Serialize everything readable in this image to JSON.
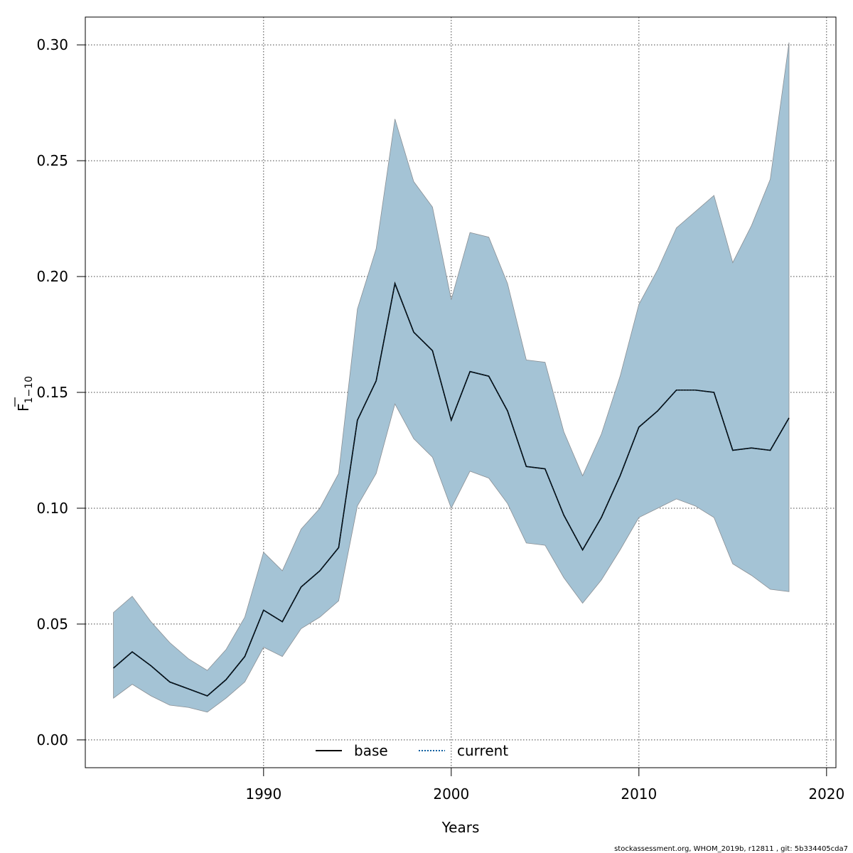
{
  "chart_data": {
    "type": "area",
    "title": "",
    "xlabel": "Years",
    "ylabel_main": "F",
    "ylabel_sub": "1−10",
    "xlim": [
      1980.5,
      2020.5
    ],
    "ylim": [
      -0.012,
      0.312
    ],
    "x_ticks": [
      1990,
      2000,
      2010,
      2020
    ],
    "x_tick_labels": [
      "1990",
      "2000",
      "2010",
      "2020"
    ],
    "y_ticks": [
      0.0,
      0.05,
      0.1,
      0.15,
      0.2,
      0.25,
      0.3
    ],
    "y_tick_labels": [
      "0.00",
      "0.05",
      "0.10",
      "0.15",
      "0.20",
      "0.25",
      "0.30"
    ],
    "grid": true,
    "x": [
      1982,
      1983,
      1984,
      1985,
      1986,
      1987,
      1988,
      1989,
      1990,
      1991,
      1992,
      1993,
      1994,
      1995,
      1996,
      1997,
      1998,
      1999,
      2000,
      2001,
      2002,
      2003,
      2004,
      2005,
      2006,
      2007,
      2008,
      2009,
      2010,
      2011,
      2012,
      2013,
      2014,
      2015,
      2016,
      2017,
      2018
    ],
    "series": [
      {
        "name": "current",
        "style": "dotted",
        "color": "#0e5fa0",
        "values": [
          0.031,
          0.038,
          0.032,
          0.025,
          0.022,
          0.019,
          0.026,
          0.036,
          0.056,
          0.051,
          0.066,
          0.073,
          0.083,
          0.138,
          0.155,
          0.197,
          0.176,
          0.168,
          0.138,
          0.159,
          0.157,
          0.142,
          0.118,
          0.117,
          0.097,
          0.082,
          0.096,
          0.114,
          0.135,
          0.142,
          0.151,
          0.151,
          0.15,
          0.125,
          0.126,
          0.125,
          0.139
        ]
      },
      {
        "name": "base",
        "style": "solid",
        "color": "#000000",
        "values": [
          0.031,
          0.038,
          0.032,
          0.025,
          0.022,
          0.019,
          0.026,
          0.036,
          0.056,
          0.051,
          0.066,
          0.073,
          0.083,
          0.138,
          0.155,
          0.197,
          0.176,
          0.168,
          0.138,
          0.159,
          0.157,
          0.142,
          0.118,
          0.117,
          0.097,
          0.082,
          0.096,
          0.114,
          0.135,
          0.142,
          0.151,
          0.151,
          0.15,
          0.125,
          0.126,
          0.125,
          0.139
        ]
      }
    ],
    "band": {
      "fill": "#a4c3d5",
      "stroke": "#8a8f94",
      "lower": [
        0.018,
        0.024,
        0.019,
        0.015,
        0.014,
        0.012,
        0.018,
        0.025,
        0.04,
        0.036,
        0.048,
        0.053,
        0.06,
        0.101,
        0.115,
        0.145,
        0.13,
        0.122,
        0.1,
        0.116,
        0.113,
        0.102,
        0.085,
        0.084,
        0.07,
        0.059,
        0.069,
        0.082,
        0.096,
        0.1,
        0.104,
        0.101,
        0.096,
        0.076,
        0.071,
        0.065,
        0.064
      ],
      "upper": [
        0.055,
        0.062,
        0.051,
        0.042,
        0.035,
        0.03,
        0.039,
        0.053,
        0.081,
        0.073,
        0.091,
        0.1,
        0.115,
        0.186,
        0.212,
        0.268,
        0.241,
        0.23,
        0.19,
        0.219,
        0.217,
        0.197,
        0.164,
        0.163,
        0.133,
        0.114,
        0.132,
        0.157,
        0.188,
        0.203,
        0.221,
        0.228,
        0.235,
        0.206,
        0.222,
        0.242,
        0.301
      ]
    },
    "legend": {
      "placement": "bottom-center",
      "items": [
        {
          "label": "base",
          "style": "solid",
          "color": "#000000"
        },
        {
          "label": "current",
          "style": "dotted",
          "color": "#0e5fa0"
        }
      ]
    }
  },
  "footer": "stockassessment.org, WHOM_2019b, r12811 , git: 5b334405cda7"
}
